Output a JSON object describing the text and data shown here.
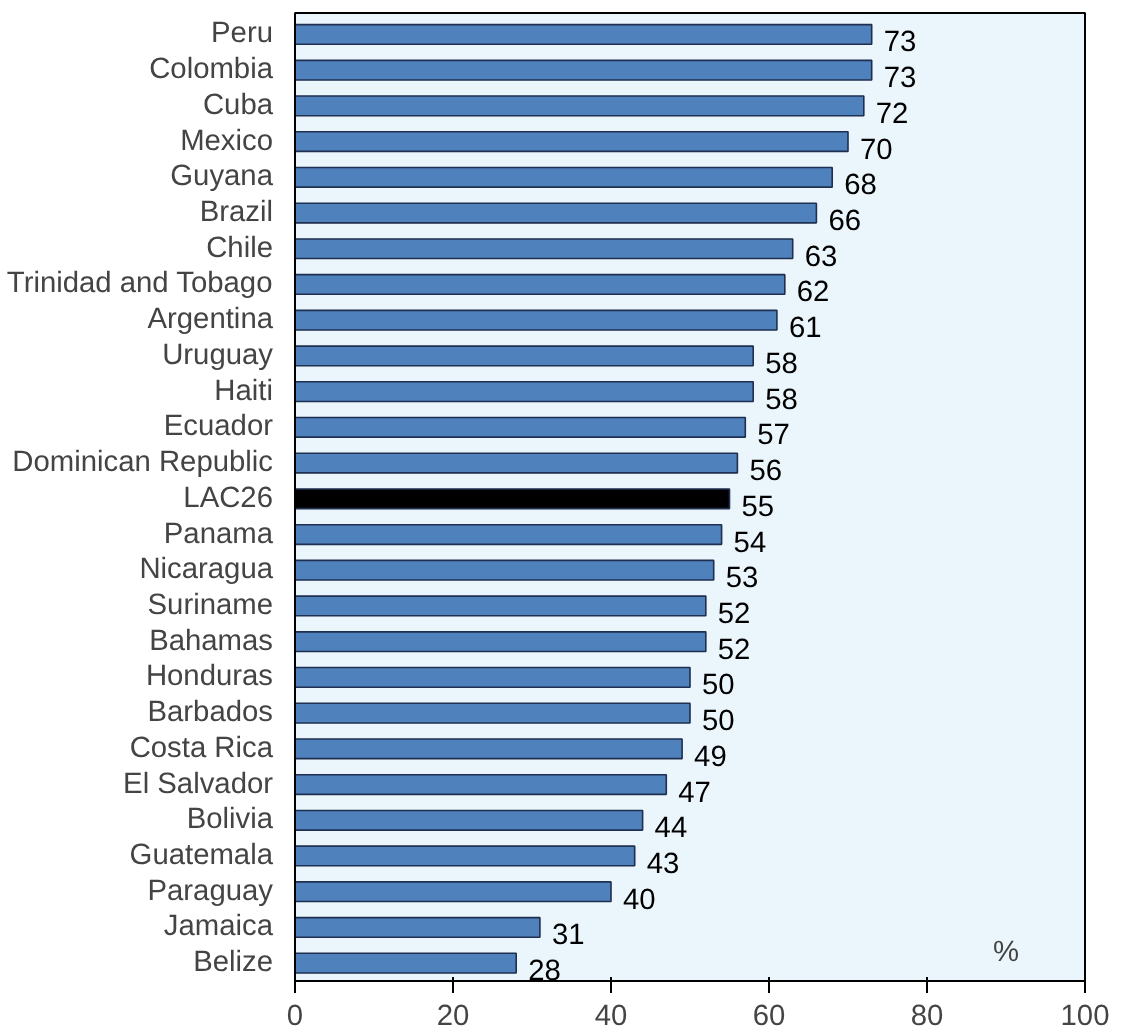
{
  "chart_data": {
    "type": "bar",
    "orientation": "horizontal",
    "xlabel": "%",
    "categories": [
      "Peru",
      "Colombia",
      "Cuba",
      "Mexico",
      "Guyana",
      "Brazil",
      "Chile",
      "Trinidad and Tobago",
      "Argentina",
      "Uruguay",
      "Haiti",
      "Ecuador",
      "Dominican Republic",
      "LAC26",
      "Panama",
      "Nicaragua",
      "Suriname",
      "Bahamas",
      "Honduras",
      "Barbados",
      "Costa Rica",
      "El Salvador",
      "Bolivia",
      "Guatemala",
      "Paraguay",
      "Jamaica",
      "Belize"
    ],
    "values": [
      73,
      73,
      72,
      70,
      68,
      66,
      63,
      62,
      61,
      58,
      58,
      57,
      56,
      55,
      54,
      53,
      52,
      52,
      50,
      50,
      49,
      47,
      44,
      43,
      40,
      31,
      28
    ],
    "colors": [
      "#4f81bd",
      "#4f81bd",
      "#4f81bd",
      "#4f81bd",
      "#4f81bd",
      "#4f81bd",
      "#4f81bd",
      "#4f81bd",
      "#4f81bd",
      "#4f81bd",
      "#4f81bd",
      "#4f81bd",
      "#4f81bd",
      "#000000",
      "#4f81bd",
      "#4f81bd",
      "#4f81bd",
      "#4f81bd",
      "#4f81bd",
      "#4f81bd",
      "#4f81bd",
      "#4f81bd",
      "#4f81bd",
      "#4f81bd",
      "#4f81bd",
      "#4f81bd",
      "#4f81bd"
    ],
    "data_labels": true,
    "xlim": [
      0,
      100
    ],
    "xticks": [
      0,
      20,
      40,
      60,
      80,
      100
    ],
    "grid": false
  }
}
